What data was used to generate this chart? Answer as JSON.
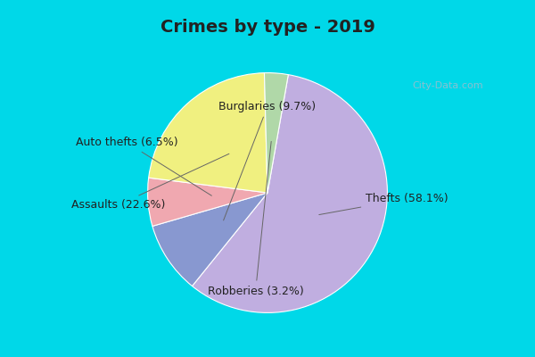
{
  "title": "Crimes by type - 2019",
  "labels": [
    "Thefts",
    "Burglaries",
    "Auto thefts",
    "Assaults",
    "Robberies"
  ],
  "values": [
    58.1,
    9.7,
    6.5,
    22.6,
    3.2
  ],
  "colors": [
    "#c0aee0",
    "#8090cc",
    "#f0a8b0",
    "#f0f080",
    "#b0d8a8"
  ],
  "label_texts": [
    "Thefts (58.1%)",
    "Burglaries (9.7%)",
    "Auto thefts (6.5%)",
    "Assaults (22.6%)",
    "Robberies (3.2%)"
  ],
  "background_cyan": "#00d8e8",
  "background_inner": "#d5ece0",
  "title_fontsize": 14,
  "label_fontsize": 9,
  "watermark": "City-Data.com"
}
